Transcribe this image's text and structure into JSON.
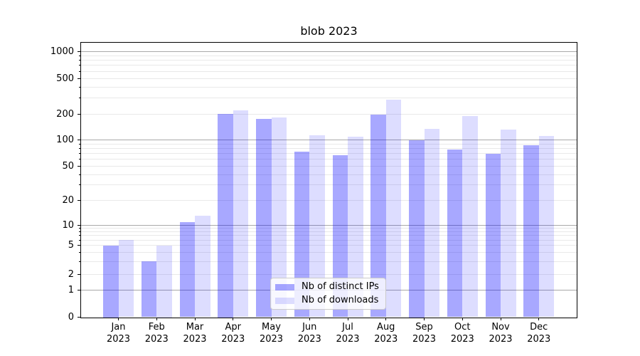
{
  "chart_data": {
    "type": "bar",
    "title": "blob 2023",
    "categories": [
      "Jan 2023",
      "Feb 2023",
      "Mar 2023",
      "Apr 2023",
      "May 2023",
      "Jun 2023",
      "Jul 2023",
      "Aug 2023",
      "Sep 2023",
      "Oct 2023",
      "Nov 2023",
      "Dec 2023"
    ],
    "month_labels": [
      "Jan",
      "Feb",
      "Mar",
      "Apr",
      "May",
      "Jun",
      "Jul",
      "Aug",
      "Sep",
      "Oct",
      "Nov",
      "Dec"
    ],
    "year_label": "2023",
    "series": [
      {
        "name": "Nb of distinct IPs",
        "color": "rgba(0,0,255,0.34)",
        "values": [
          5,
          3,
          11,
          200,
          176,
          73,
          67,
          195,
          100,
          77,
          69,
          87
        ]
      },
      {
        "name": "Nb of downloads",
        "color": "rgba(0,0,255,0.132)",
        "values": [
          6,
          5,
          13,
          218,
          182,
          113,
          108,
          288,
          134,
          190,
          131,
          110
        ]
      }
    ],
    "yscale": "symlog",
    "yticks": [
      0,
      1,
      2,
      5,
      10,
      20,
      50,
      100,
      200,
      500,
      1000
    ],
    "ylim": [
      0,
      1300
    ],
    "grid": "horizontal, major at powers of 10, faint log minors",
    "legend_position": "lower center",
    "colors": {
      "bar_dark_on_white": "#aaaaff",
      "bar_light_on_white": "#ddddff",
      "grid_major": "#a9a9a9",
      "grid_minor": "#e9e9e9",
      "axis": "#000000"
    }
  }
}
